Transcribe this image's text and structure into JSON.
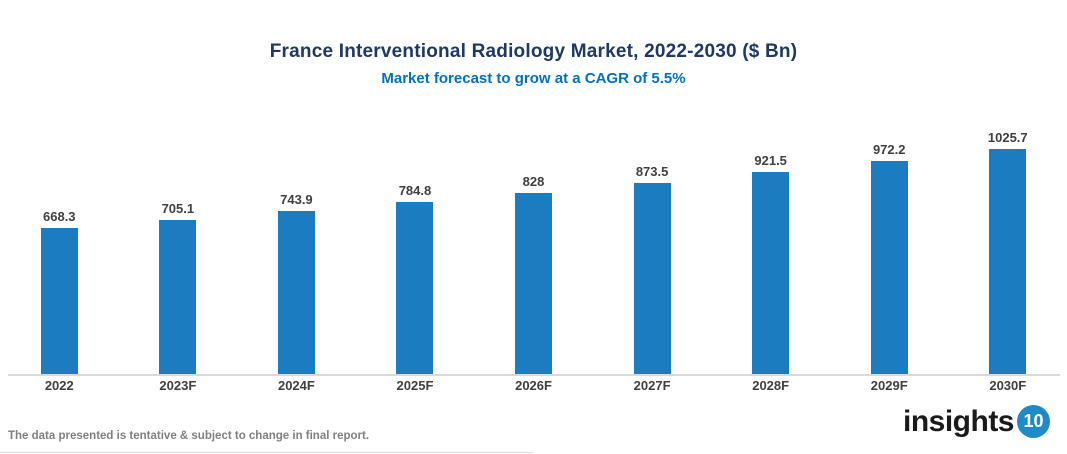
{
  "header": {
    "title": "France Interventional Radiology Market, 2022-2030 ($ Bn)",
    "subtitle": "Market forecast to grow at a CAGR of 5.5%"
  },
  "chart_data": {
    "type": "bar",
    "categories": [
      "2022",
      "2023F",
      "2024F",
      "2025F",
      "2026F",
      "2027F",
      "2028F",
      "2029F",
      "2030F"
    ],
    "values": [
      668.3,
      705.1,
      743.9,
      784.8,
      828,
      873.5,
      921.5,
      972.2,
      1025.7
    ],
    "value_labels": [
      "668.3",
      "705.1",
      "743.9",
      "784.8",
      "828",
      "873.5",
      "921.5",
      "972.2",
      "1025.7"
    ],
    "title": "France Interventional Radiology Market, 2022-2030 ($ Bn)",
    "subtitle": "Market forecast to grow at a CAGR of 5.5%",
    "xlabel": "",
    "ylabel": "",
    "ylim": [
      0,
      1100
    ],
    "grid": false,
    "legend": false,
    "data_labels": true,
    "bar_color": "#1B7DC0"
  },
  "colors": {
    "bar": "#1B7DC0",
    "title": "#1F3864",
    "subtitle": "#0070C0",
    "axis": "#D9D9D9",
    "label": "#404040",
    "disclaimer": "#808080",
    "logo_circle": "#1E8BC8"
  },
  "footer": {
    "disclaimer": "The data presented is tentative & subject to change in final report.",
    "logo_text": "insights",
    "logo_badge": "10"
  }
}
